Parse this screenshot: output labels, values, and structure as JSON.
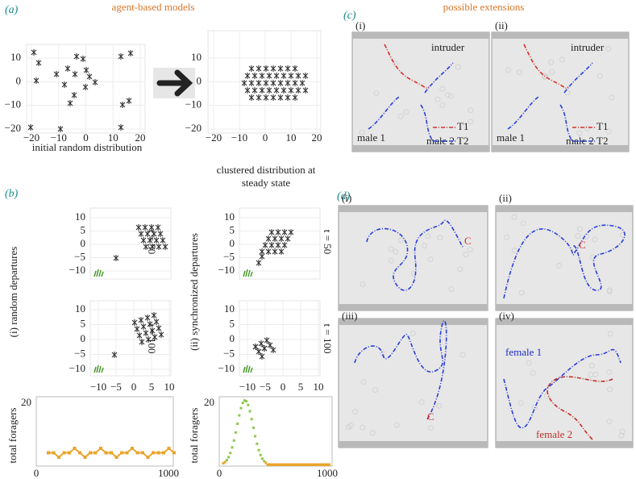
{
  "headings": {
    "left": "agent-based models",
    "right": "possible extensions"
  },
  "a": {
    "label": "(a)",
    "initial": {
      "yticks": [
        "10",
        "0",
        "−10",
        "−20"
      ],
      "xticks": [
        "−20",
        "−10",
        "0",
        "10",
        "20"
      ],
      "caption": "initial random distribution"
    },
    "clustered": {
      "yticks": [
        "10",
        "0",
        "−10",
        "−20"
      ],
      "xticks": [
        "−20",
        "−10",
        "0",
        "10",
        "20"
      ],
      "caption": [
        "clustered distribution at",
        "steady state"
      ]
    }
  },
  "b": {
    "label": "(b)",
    "random": {
      "title": "(i) random departures",
      "t50": {
        "time": "t = 50",
        "yticks": [
          "10",
          "5",
          "0",
          "−5",
          "−10"
        ]
      },
      "t100": {
        "time": "t = 100",
        "yticks": [
          "10",
          "5",
          "0",
          "−5",
          "−10"
        ],
        "xticks": [
          "−10",
          "−5",
          "0",
          "5",
          "10"
        ]
      },
      "foragers": {
        "ylabel": "total foragers",
        "yticks": [
          "20"
        ],
        "xticks": [
          "0",
          "1000"
        ]
      }
    },
    "synchronized": {
      "title": "(ii) synchronized departures",
      "t50": {
        "time": "t = 50",
        "yticks": [
          "10",
          "5",
          "0",
          "−5",
          "−10"
        ]
      },
      "t100": {
        "time": "t = 100",
        "yticks": [
          "10",
          "5",
          "0",
          "−5",
          "−10"
        ],
        "xticks": [
          "−10",
          "−5",
          "0",
          "5",
          "10"
        ]
      },
      "foragers": {
        "ylabel": "total foragers",
        "yticks": [
          "20"
        ],
        "xticks": [
          "0",
          "1000"
        ]
      }
    }
  },
  "c": {
    "label": "(c)",
    "i": {
      "label": "(i)",
      "intruder": "intruder",
      "male1": "male 1",
      "male2": "male 2",
      "legend": [
        "T1",
        "T2"
      ]
    },
    "ii": {
      "label": "(ii)",
      "intruder": "intruder",
      "male1": "male 1",
      "male2": "male 2",
      "legend": [
        "T1",
        "T2"
      ]
    }
  },
  "d": {
    "label": "(d)",
    "panels": [
      {
        "label": "(i)",
        "marks": [
          "C"
        ]
      },
      {
        "label": "(ii)",
        "marks": [
          "C"
        ]
      },
      {
        "label": "(iii)",
        "marks": [
          "C"
        ]
      },
      {
        "label": "(iv)",
        "marks": [
          "female 1",
          "female 2"
        ]
      }
    ]
  }
}
